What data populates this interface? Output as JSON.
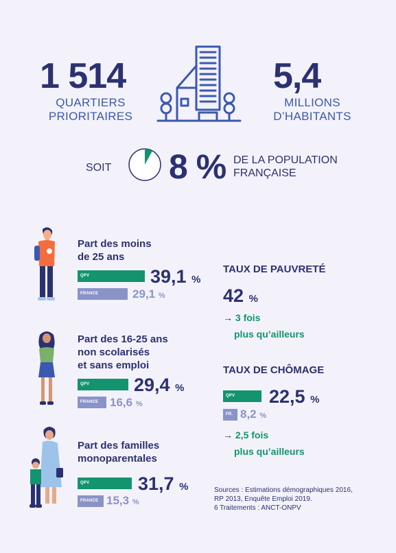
{
  "header": {
    "quartiers": {
      "number": "1 514",
      "line1": "QUARTIERS",
      "line2": "PRIORITAIRES"
    },
    "habitants": {
      "number": "5,4",
      "line1": "MILLIONS",
      "line2": "D’HABITANTS"
    },
    "soit": {
      "prefix": "SOIT",
      "percent": "8 %",
      "line1": "DE LA POPULATION",
      "line2": "FRANÇAISE",
      "pie_fraction": 0.08
    }
  },
  "indicators": [
    {
      "label_lines": [
        "Part des moins",
        "de 25 ans"
      ],
      "qpv_tag": "QPV",
      "qpv_value": "39,1",
      "qpv_num": 39.1,
      "fr_tag": "FRANCE",
      "fr_value": "29,1",
      "fr_num": 29.1,
      "unit": "%"
    },
    {
      "label_lines": [
        "Part des 16-25 ans",
        "non scolarisés",
        "et sans emploi"
      ],
      "qpv_tag": "QPV",
      "qpv_value": "29,4",
      "qpv_num": 29.4,
      "fr_tag": "FRANCE",
      "fr_value": "16,6",
      "fr_num": 16.6,
      "unit": "%"
    },
    {
      "label_lines": [
        "Part des familles",
        "monoparentales"
      ],
      "qpv_tag": "QPV",
      "qpv_value": "31,7",
      "qpv_num": 31.7,
      "fr_tag": "FRANCE",
      "fr_value": "15,3",
      "fr_num": 15.3,
      "unit": "%"
    }
  ],
  "pauvrete": {
    "title": "TAUX DE PAUVRETÉ",
    "value": "42",
    "unit": "%",
    "arrow": "→",
    "note_line1": "3 fois",
    "note_line2": "plus qu’ailleurs"
  },
  "chomage": {
    "title": "TAUX DE CHÔMAGE",
    "qpv_tag": "QPV",
    "qpv_value": "22,5",
    "qpv_num": 22.5,
    "fr_tag": "FR.",
    "fr_value": "8,2",
    "fr_num": 8.2,
    "unit": "%",
    "arrow": "→",
    "note_line1": "2,5 fois",
    "note_line2": "plus qu’ailleurs"
  },
  "sources": {
    "line1": "Sources : Estimations démographiques 2016,",
    "line2": "RP 2013, Enquête Emploi 2019.",
    "line3": "6 Traitements : ANCT-ONPV"
  },
  "colors": {
    "navy": "#2b3170",
    "blue": "#3b58b0",
    "green": "#13936e",
    "lavender": "#8a93c8",
    "background": "#f3f2fa"
  },
  "icons": [
    "building-icon",
    "pie-icon",
    "boy-icon",
    "girl-icon",
    "mother-child-icon"
  ]
}
